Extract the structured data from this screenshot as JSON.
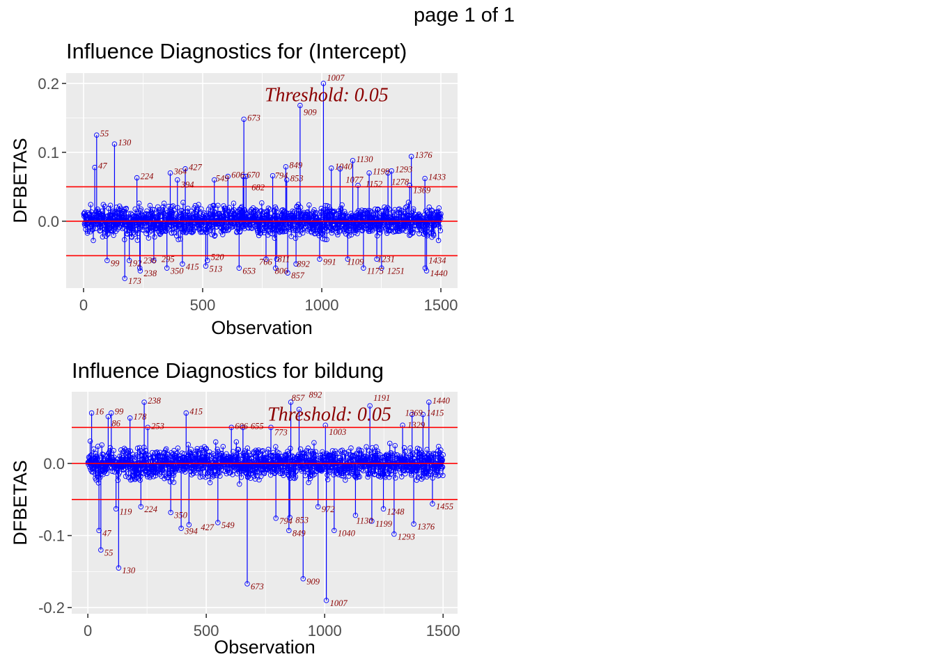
{
  "page_label": "page 1 of 1",
  "chart_data": [
    {
      "type": "scatter",
      "title": "Influence Diagnostics for (Intercept)",
      "xlabel": "Observation",
      "ylabel": "DFBETAS",
      "xlim": [
        -73,
        1570
      ],
      "ylim": [
        -0.097,
        0.215
      ],
      "xticks": [
        0,
        500,
        1000,
        1500
      ],
      "xtick_labels": [
        "0",
        "500",
        "1000",
        "1500"
      ],
      "yticks": [
        0.0,
        0.1,
        0.2
      ],
      "ytick_labels": [
        "0.0",
        "0.1",
        "0.2"
      ],
      "threshold": 0.05,
      "threshold_label": "Threshold: 0.05",
      "threshold_label_pos": [
        1020,
        0.183
      ],
      "n_obs": 1500,
      "noise_amplitude": 0.035,
      "grid": true,
      "influential_points": [
        [
          1007,
          0.2
        ],
        [
          909,
          0.168
        ],
        [
          673,
          0.148
        ],
        [
          55,
          0.125
        ],
        [
          130,
          0.112
        ],
        [
          1376,
          0.094
        ],
        [
          1130,
          0.088
        ],
        [
          849,
          0.079
        ],
        [
          47,
          0.078
        ],
        [
          427,
          0.076
        ],
        [
          1040,
          0.077
        ],
        [
          1077,
          0.076
        ],
        [
          364,
          0.07
        ],
        [
          224,
          0.063
        ],
        [
          394,
          0.06
        ],
        [
          853,
          0.06
        ],
        [
          794,
          0.066
        ],
        [
          1433,
          0.062
        ],
        [
          1293,
          0.073
        ],
        [
          1278,
          0.07
        ],
        [
          1199,
          0.07
        ],
        [
          1152,
          0.052
        ],
        [
          1369,
          0.052
        ],
        [
          549,
          0.06
        ],
        [
          606,
          0.065
        ],
        [
          670,
          0.065
        ],
        [
          682,
          0.065
        ],
        [
          173,
          -0.083
        ],
        [
          1440,
          -0.072
        ],
        [
          857,
          -0.075
        ],
        [
          1434,
          -0.068
        ],
        [
          513,
          -0.065
        ],
        [
          238,
          -0.072
        ],
        [
          236,
          -0.068
        ],
        [
          892,
          -0.062
        ],
        [
          1231,
          -0.055
        ],
        [
          1175,
          -0.068
        ],
        [
          1251,
          -0.068
        ],
        [
          350,
          -0.068
        ],
        [
          415,
          -0.062
        ],
        [
          811,
          -0.055
        ],
        [
          766,
          -0.055
        ],
        [
          99,
          -0.057
        ],
        [
          192,
          -0.057
        ],
        [
          295,
          -0.057
        ],
        [
          520,
          -0.057
        ],
        [
          806,
          -0.068
        ],
        [
          653,
          -0.068
        ],
        [
          991,
          -0.055
        ],
        [
          1109,
          -0.055
        ]
      ]
    },
    {
      "type": "scatter",
      "title": "Influence Diagnostics for bildung",
      "xlabel": "Observation",
      "ylabel": "DFBETAS",
      "xlim": [
        -68,
        1561
      ],
      "ylim": [
        -0.2085,
        0.0995
      ],
      "xticks": [
        0,
        500,
        1000,
        1500
      ],
      "xtick_labels": [
        "0",
        "500",
        "1000",
        "1500"
      ],
      "yticks": [
        -0.2,
        -0.1,
        0.0
      ],
      "ytick_labels": [
        "-0.2",
        "-0.1",
        "0.0"
      ],
      "threshold": 0.05,
      "threshold_label": "Threshold: 0.05",
      "threshold_label_pos": [
        1020,
        0.068
      ],
      "n_obs": 1500,
      "noise_amplitude": 0.035,
      "grid": true,
      "influential_points": [
        [
          1007,
          -0.19
        ],
        [
          909,
          -0.16
        ],
        [
          673,
          -0.167
        ],
        [
          130,
          -0.145
        ],
        [
          55,
          -0.12
        ],
        [
          47,
          -0.093
        ],
        [
          1293,
          -0.098
        ],
        [
          849,
          -0.093
        ],
        [
          1040,
          -0.093
        ],
        [
          1376,
          -0.084
        ],
        [
          394,
          -0.09
        ],
        [
          427,
          -0.085
        ],
        [
          549,
          -0.082
        ],
        [
          794,
          -0.076
        ],
        [
          853,
          -0.075
        ],
        [
          1199,
          -0.08
        ],
        [
          1130,
          -0.072
        ],
        [
          350,
          -0.068
        ],
        [
          119,
          -0.063
        ],
        [
          224,
          -0.06
        ],
        [
          1248,
          -0.063
        ],
        [
          972,
          -0.06
        ],
        [
          1455,
          -0.056
        ],
        [
          238,
          0.085
        ],
        [
          857,
          0.085
        ],
        [
          1440,
          0.085
        ],
        [
          1191,
          0.08
        ],
        [
          415,
          0.07
        ],
        [
          16,
          0.07
        ],
        [
          99,
          0.07
        ],
        [
          1415,
          0.068
        ],
        [
          1369,
          0.068
        ],
        [
          178,
          0.063
        ],
        [
          86,
          0.065
        ],
        [
          1329,
          0.053
        ],
        [
          1003,
          0.053
        ],
        [
          253,
          0.05
        ],
        [
          773,
          0.05
        ],
        [
          892,
          0.075
        ],
        [
          606,
          0.05
        ],
        [
          655,
          0.05
        ]
      ]
    }
  ]
}
